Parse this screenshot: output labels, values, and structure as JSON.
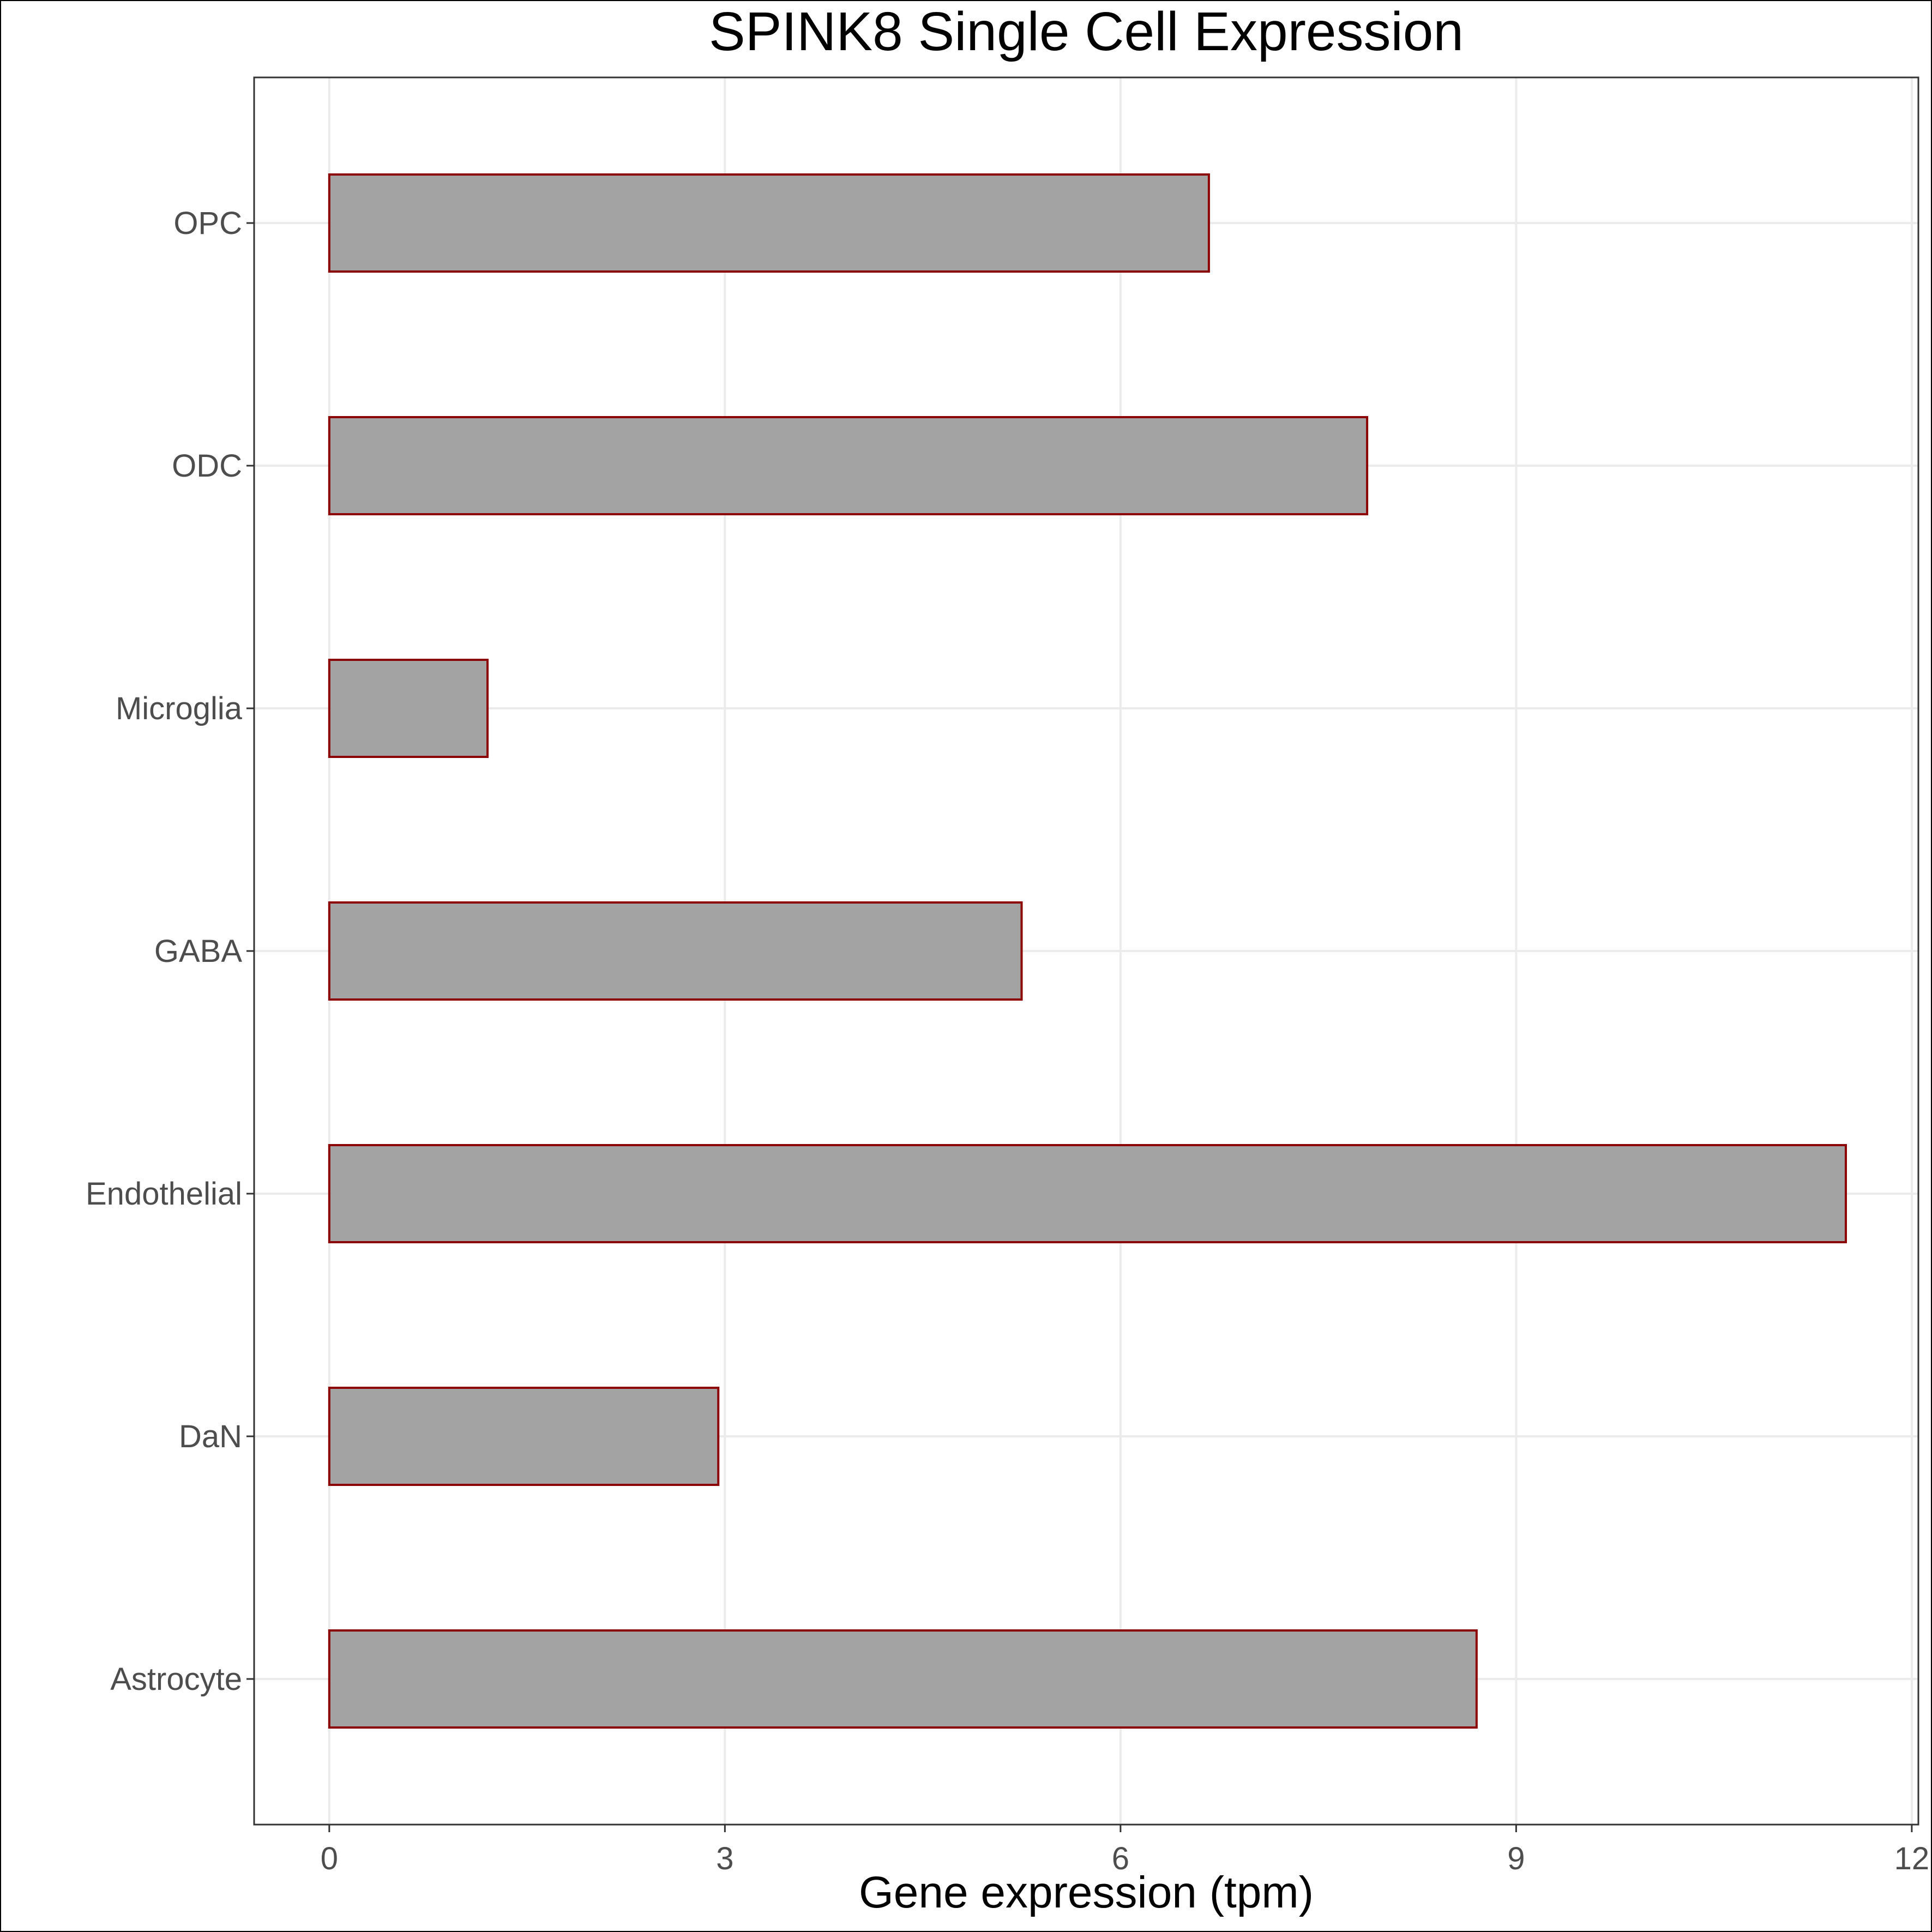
{
  "chart_data": {
    "type": "bar",
    "orientation": "horizontal",
    "title": "SPINK8 Single Cell Expression",
    "xlabel": "Gene expression (tpm)",
    "ylabel": "",
    "categories": [
      "Astrocyte",
      "DaN",
      "Endothelial",
      "GABA",
      "Microglia",
      "ODC",
      "OPC"
    ],
    "values": [
      8.7,
      2.95,
      11.5,
      5.25,
      1.2,
      7.87,
      6.67
    ],
    "xlim": [
      -0.57,
      12.05
    ],
    "xticks": [
      0,
      3,
      6,
      9,
      12
    ],
    "xtick_labels": [
      "0",
      "3",
      "6",
      "9",
      "12"
    ],
    "grid": true,
    "colors": {
      "bar_fill": "#a3a3a3",
      "bar_stroke": "#8b0000",
      "grid": "#ebebeb",
      "panel_border": "#333333"
    }
  }
}
